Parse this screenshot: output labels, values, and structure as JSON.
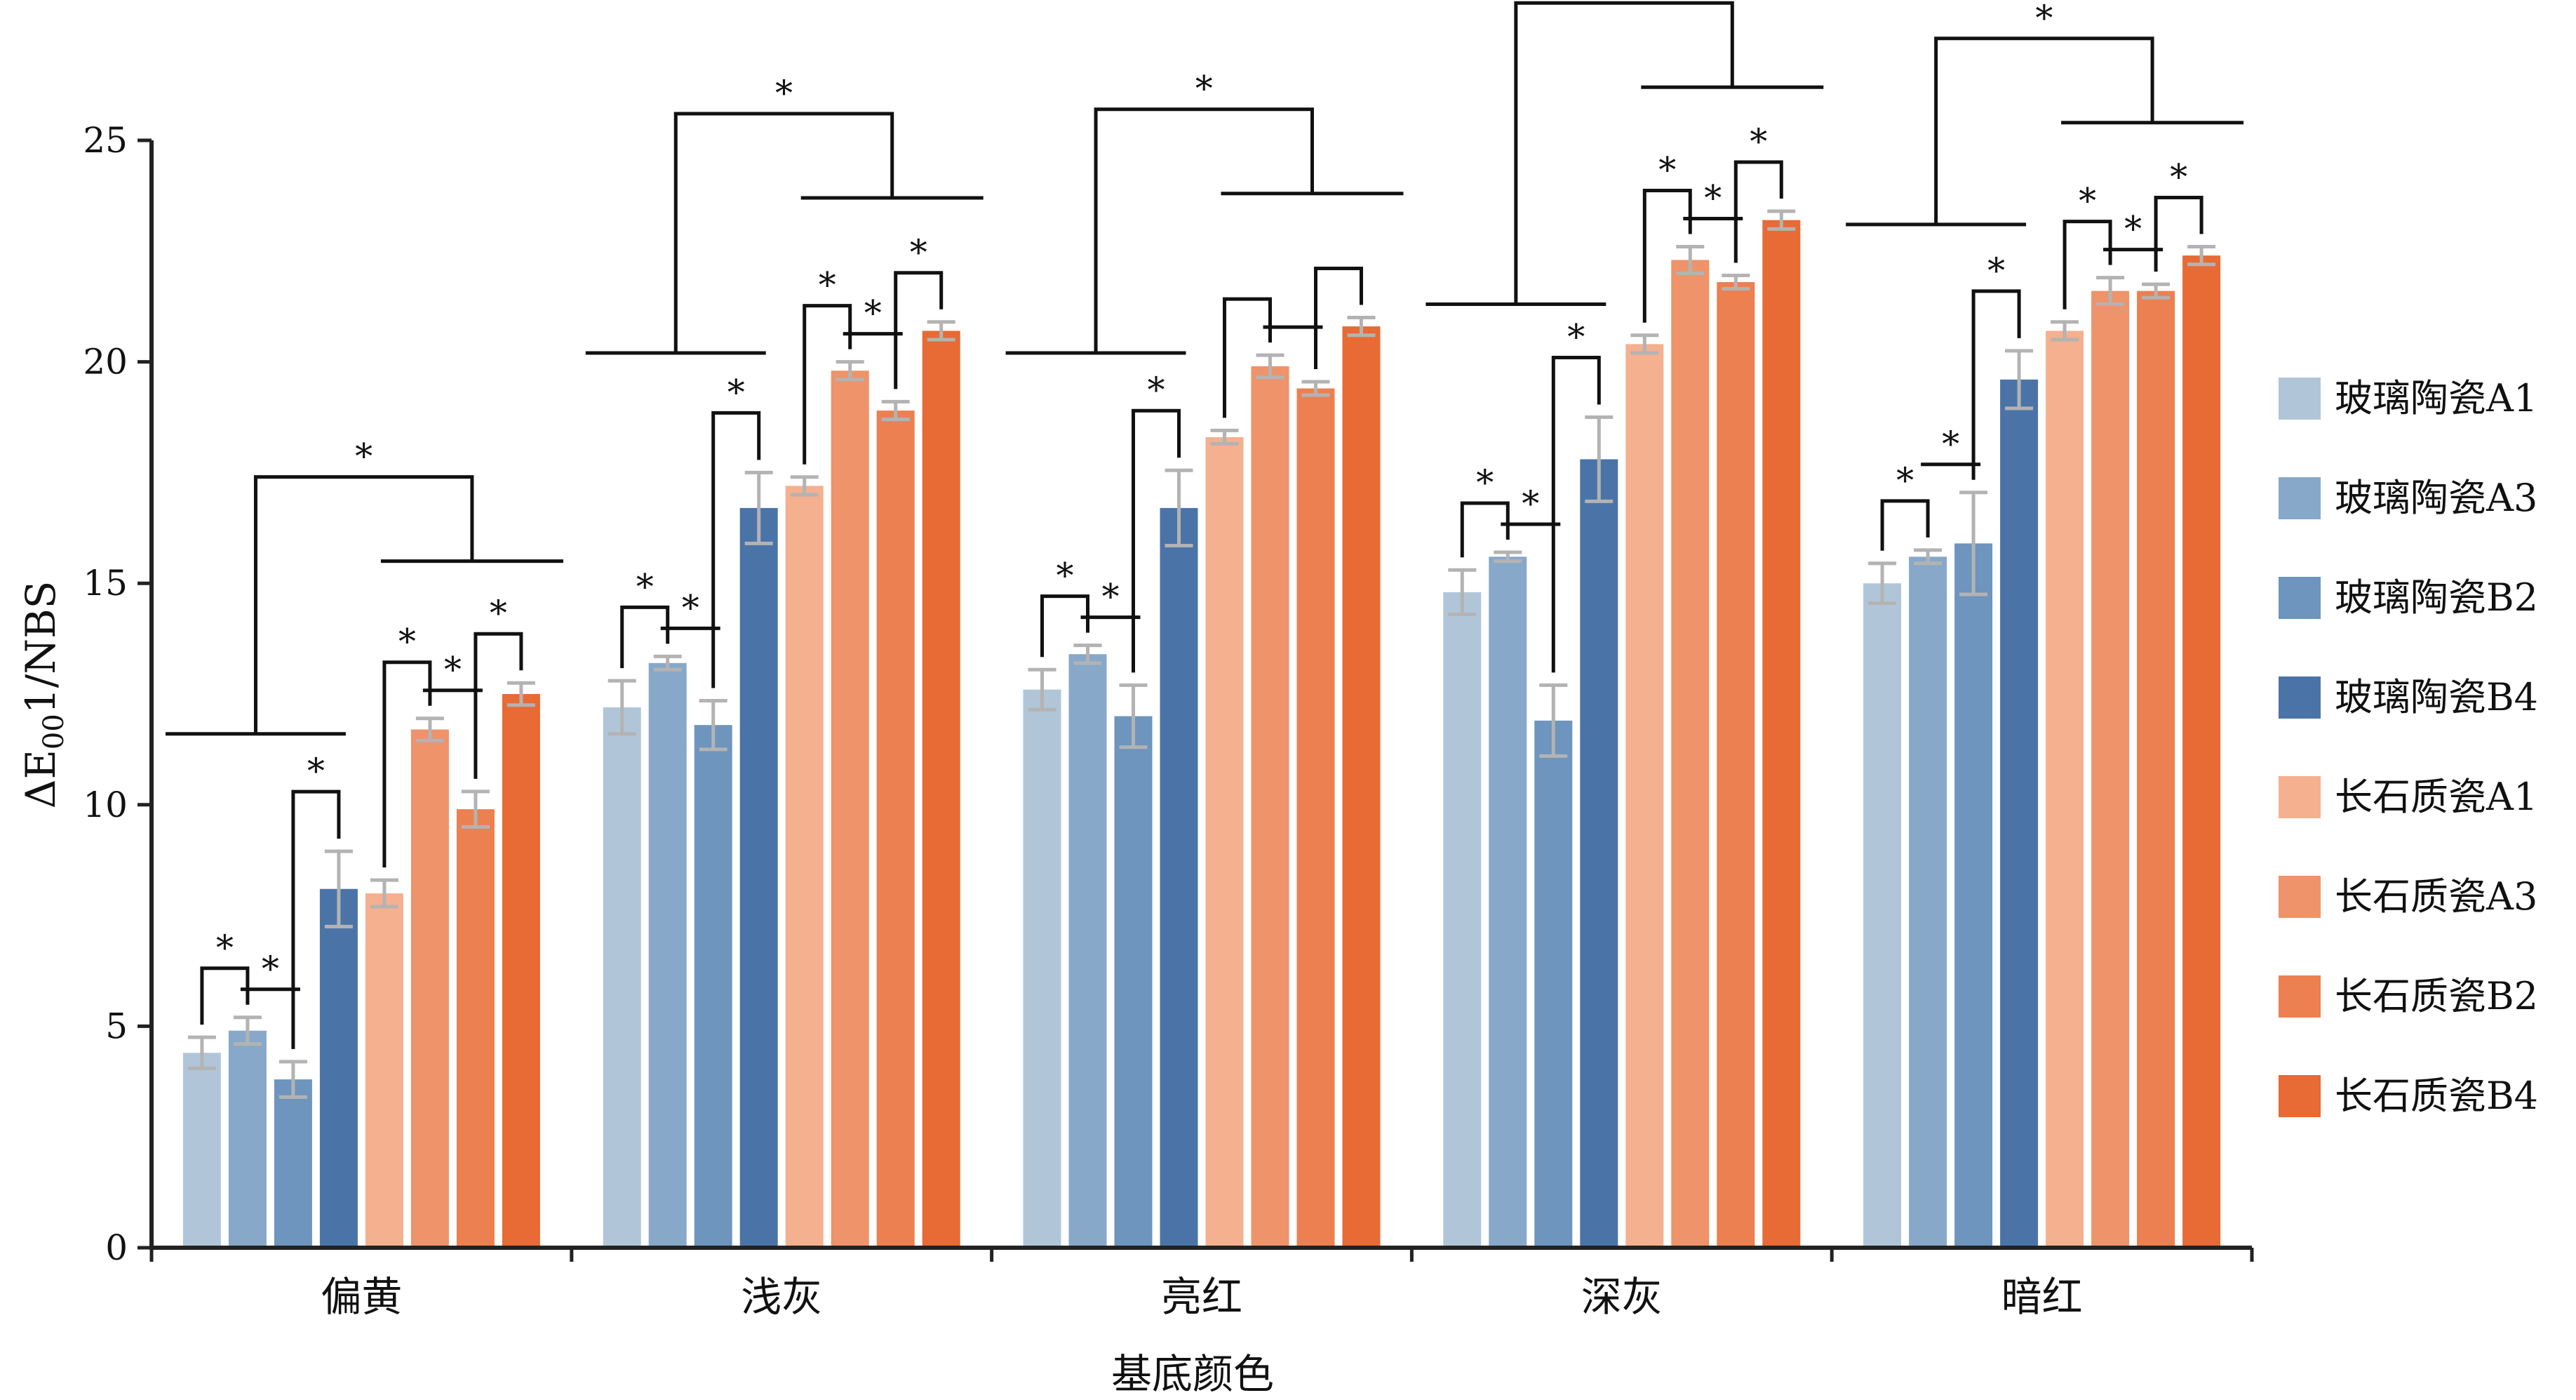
{
  "chart_data": {
    "type": "bar",
    "xlabel": "基底颜色",
    "ylabel_parts": {
      "prefix": "ΔE",
      "sub": "00",
      "suffix": "1/NBS"
    },
    "ylim": [
      0,
      25
    ],
    "yticks": [
      "0",
      "5",
      "10",
      "15",
      "20",
      "25"
    ],
    "legend_position": "right",
    "categories": [
      "偏黄",
      "浅灰",
      "亮红",
      "深灰",
      "暗红"
    ],
    "significance_marker": "*",
    "series": [
      {
        "name": "玻璃陶瓷A1",
        "color": "#b0c6d8",
        "values": [
          4.4,
          12.2,
          12.6,
          14.8,
          15.0
        ],
        "errors": [
          0.35,
          0.6,
          0.45,
          0.5,
          0.45
        ]
      },
      {
        "name": "玻璃陶瓷A3",
        "color": "#87a8c8",
        "values": [
          4.9,
          13.2,
          13.4,
          15.6,
          15.6
        ],
        "errors": [
          0.3,
          0.15,
          0.2,
          0.1,
          0.15
        ]
      },
      {
        "name": "玻璃陶瓷B2",
        "color": "#6d95bd",
        "values": [
          3.8,
          11.8,
          12.0,
          11.9,
          15.9
        ],
        "errors": [
          0.4,
          0.55,
          0.7,
          0.8,
          1.15
        ]
      },
      {
        "name": "玻璃陶瓷B4",
        "color": "#4a74a8",
        "values": [
          8.1,
          16.7,
          16.7,
          17.8,
          19.6
        ],
        "errors": [
          0.85,
          0.8,
          0.85,
          0.95,
          0.65
        ]
      },
      {
        "name": "长石质瓷A1",
        "color": "#f5b08f",
        "values": [
          8.0,
          17.2,
          18.3,
          20.4,
          20.7
        ],
        "errors": [
          0.3,
          0.2,
          0.15,
          0.2,
          0.2
        ]
      },
      {
        "name": "长石质瓷A3",
        "color": "#ee936a",
        "values": [
          11.7,
          19.8,
          19.9,
          22.3,
          21.6
        ],
        "errors": [
          0.25,
          0.2,
          0.25,
          0.3,
          0.3
        ]
      },
      {
        "name": "长石质瓷B2",
        "color": "#ec8050",
        "values": [
          9.9,
          18.9,
          19.4,
          21.8,
          21.6
        ],
        "errors": [
          0.4,
          0.2,
          0.15,
          0.15,
          0.15
        ]
      },
      {
        "name": "长石质瓷B4",
        "color": "#e86a34",
        "values": [
          12.5,
          20.7,
          20.8,
          23.2,
          22.4
        ],
        "errors": [
          0.25,
          0.2,
          0.2,
          0.2,
          0.2
        ]
      }
    ]
  }
}
